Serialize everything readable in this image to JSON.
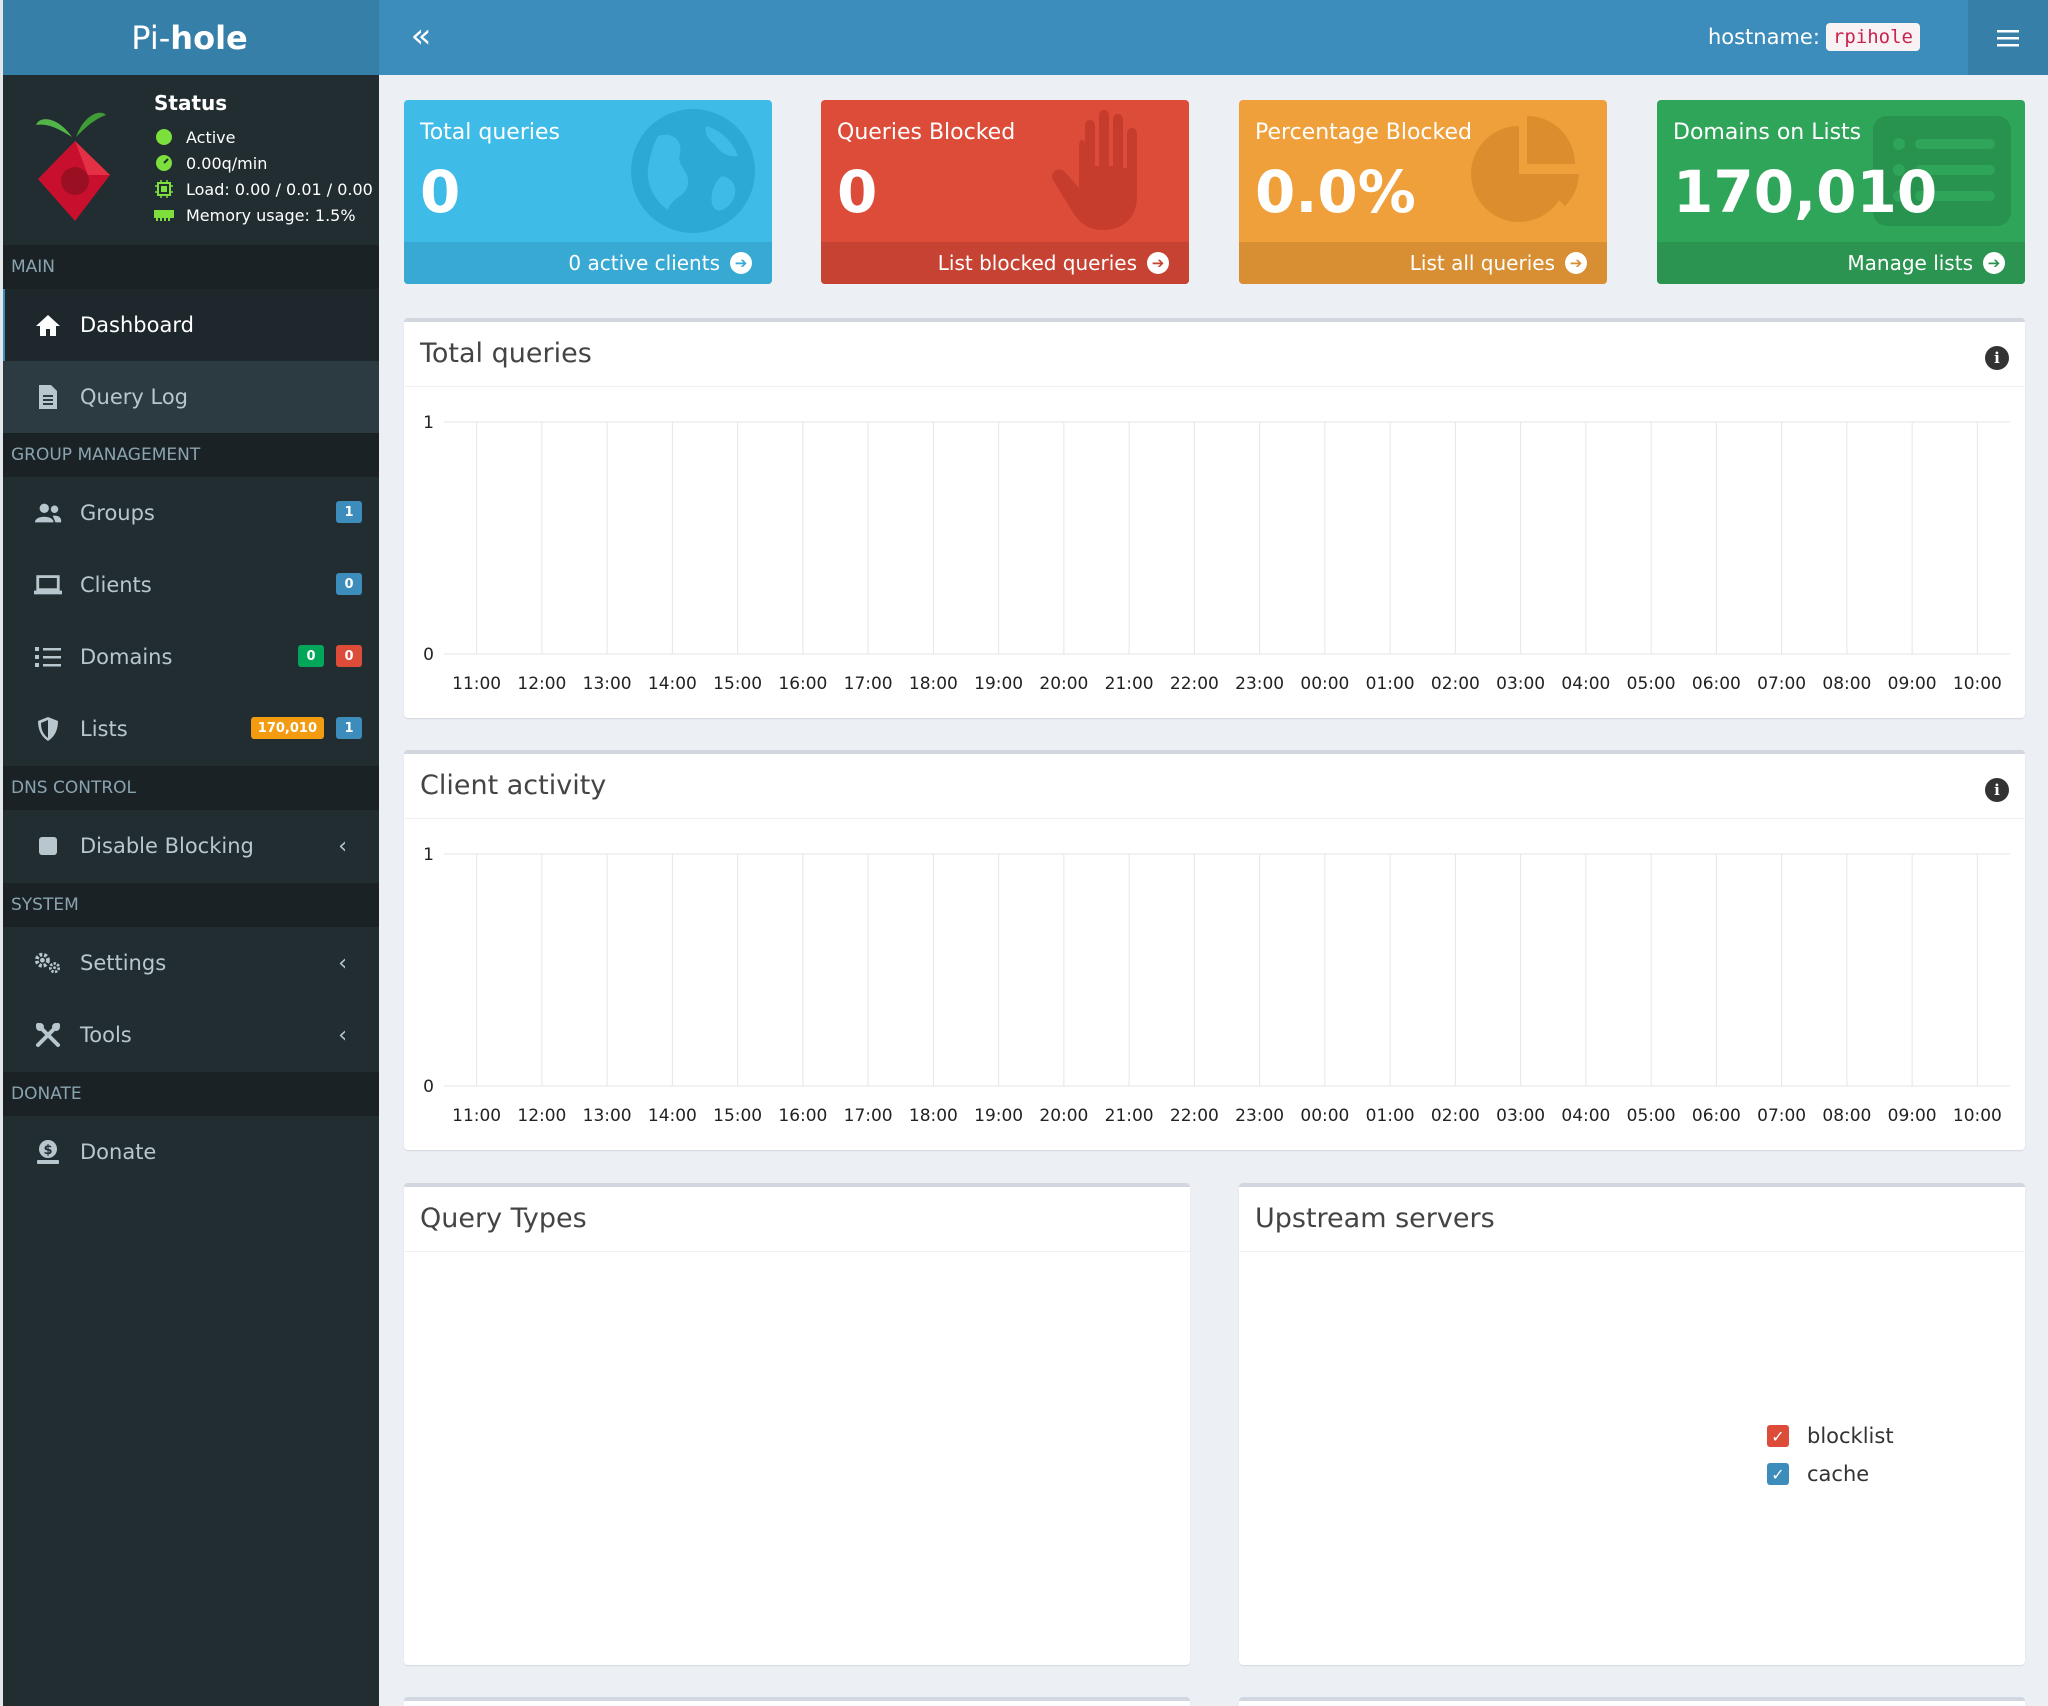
{
  "brand": {
    "pre": "Pi-",
    "bold": "hole"
  },
  "status": {
    "title": "Status",
    "active": "Active",
    "rate": "0.00q/min",
    "load": "Load: 0.00 / 0.01 / 0.00",
    "memory": "Memory usage: 1.5%"
  },
  "sidebar": {
    "headers": {
      "main": "MAIN",
      "group": "GROUP MANAGEMENT",
      "dns": "DNS CONTROL",
      "system": "SYSTEM",
      "donate": "DONATE"
    },
    "items": {
      "dashboard": "Dashboard",
      "querylog": "Query Log",
      "groups": "Groups",
      "clients": "Clients",
      "domains": "Domains",
      "lists": "Lists",
      "disable": "Disable Blocking",
      "settings": "Settings",
      "tools": "Tools",
      "donate": "Donate"
    },
    "badges": {
      "groups": "1",
      "clients": "0",
      "domains_allow": "0",
      "domains_deny": "0",
      "lists_domains": "170,010",
      "lists_count": "1"
    }
  },
  "topbar": {
    "hostname_label": "hostname:",
    "hostname_value": "rpihole"
  },
  "boxes": {
    "total": {
      "title": "Total queries",
      "value": "0",
      "footer": "0 active clients",
      "color": "#3fbbe7"
    },
    "blocked": {
      "title": "Queries Blocked",
      "value": "0",
      "footer": "List blocked queries",
      "color": "#dd4b39"
    },
    "percent": {
      "title": "Percentage Blocked",
      "value": "0.0%",
      "footer": "List all queries",
      "color": "#f0a03a"
    },
    "domains": {
      "title": "Domains on Lists",
      "value": "170,010",
      "footer": "Manage lists",
      "color": "#2fa55a"
    }
  },
  "panels": {
    "total_queries": "Total queries",
    "client_activity": "Client activity",
    "query_types": "Query Types",
    "upstream": "Upstream servers"
  },
  "legend": {
    "blocklist": {
      "label": "blocklist",
      "color": "#dd4b39"
    },
    "cache": {
      "label": "cache",
      "color": "#3c8dbc"
    }
  },
  "chart_data": [
    {
      "type": "bar",
      "title": "Total queries",
      "categories": [
        "11:00",
        "12:00",
        "13:00",
        "14:00",
        "15:00",
        "16:00",
        "17:00",
        "18:00",
        "19:00",
        "20:00",
        "21:00",
        "22:00",
        "23:00",
        "00:00",
        "01:00",
        "02:00",
        "03:00",
        "04:00",
        "05:00",
        "06:00",
        "07:00",
        "08:00",
        "09:00",
        "10:00"
      ],
      "values": [
        0,
        0,
        0,
        0,
        0,
        0,
        0,
        0,
        0,
        0,
        0,
        0,
        0,
        0,
        0,
        0,
        0,
        0,
        0,
        0,
        0,
        0,
        0,
        0
      ],
      "ylim": [
        0,
        1
      ],
      "yticks": [
        "0",
        "1"
      ],
      "grid": true
    },
    {
      "type": "bar",
      "title": "Client activity",
      "categories": [
        "11:00",
        "12:00",
        "13:00",
        "14:00",
        "15:00",
        "16:00",
        "17:00",
        "18:00",
        "19:00",
        "20:00",
        "21:00",
        "22:00",
        "23:00",
        "00:00",
        "01:00",
        "02:00",
        "03:00",
        "04:00",
        "05:00",
        "06:00",
        "07:00",
        "08:00",
        "09:00",
        "10:00"
      ],
      "values": [
        0,
        0,
        0,
        0,
        0,
        0,
        0,
        0,
        0,
        0,
        0,
        0,
        0,
        0,
        0,
        0,
        0,
        0,
        0,
        0,
        0,
        0,
        0,
        0
      ],
      "ylim": [
        0,
        1
      ],
      "yticks": [
        "0",
        "1"
      ],
      "grid": true
    }
  ]
}
